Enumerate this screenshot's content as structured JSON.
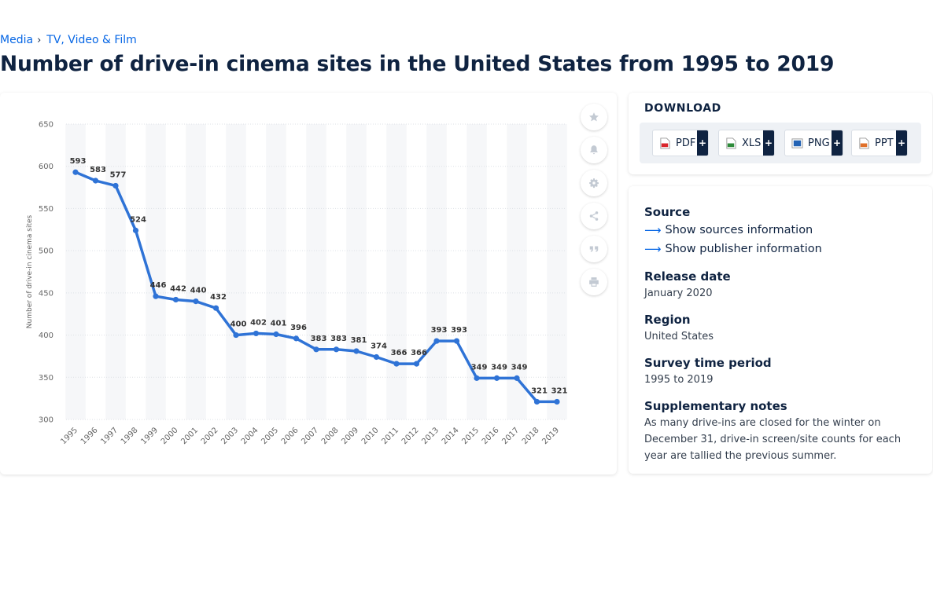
{
  "breadcrumb": {
    "items": [
      "Media",
      "TV, Video & Film"
    ]
  },
  "title": "Number of drive-in cinema sites in the United States from 1995 to 2019",
  "chart_data": {
    "type": "line",
    "title": "",
    "xlabel": "",
    "ylabel": "Number of drive-in cinema sites",
    "categories": [
      "1995",
      "1996",
      "1997",
      "1998",
      "1999",
      "2000",
      "2001",
      "2002",
      "2003",
      "2004",
      "2005",
      "2006",
      "2007",
      "2008",
      "2009",
      "2010",
      "2011",
      "2012",
      "2013",
      "2014",
      "2015",
      "2016",
      "2017",
      "2018",
      "2019"
    ],
    "series": [
      {
        "values": [
          593,
          583,
          577,
          524,
          446,
          442,
          440,
          432,
          400,
          402,
          401,
          396,
          383,
          383,
          381,
          374,
          366,
          366,
          393,
          393,
          349,
          349,
          349,
          321,
          321
        ]
      }
    ],
    "y_ticks": [
      650,
      600,
      550,
      500,
      450,
      400,
      350,
      300
    ],
    "ylim": [
      300,
      650
    ],
    "grid": true,
    "data_labels": true,
    "line_color": "#2f73d6"
  },
  "toolbar": {
    "icons": [
      "star-icon",
      "bell-icon",
      "gear-icon",
      "share-icon",
      "quote-icon",
      "print-icon"
    ]
  },
  "download": {
    "title": "DOWNLOAD",
    "buttons": [
      {
        "label": "PDF",
        "plus": "+",
        "color": "#d9262c"
      },
      {
        "label": "XLS",
        "plus": "+",
        "color": "#2e8b3a"
      },
      {
        "label": "PNG",
        "plus": "+",
        "color": "#2463b4"
      },
      {
        "label": "PPT",
        "plus": "+",
        "color": "#e0702a"
      }
    ]
  },
  "info": {
    "source_label": "Source",
    "show_sources": "Show sources information",
    "show_publisher": "Show publisher information",
    "release_label": "Release date",
    "release_value": "January 2020",
    "region_label": "Region",
    "region_value": "United States",
    "survey_label": "Survey time period",
    "survey_value": "1995 to 2019",
    "notes_label": "Supplementary notes",
    "notes_value": "As many drive-ins are closed for the winter on December 31, drive-in screen/site counts for each year are tallied the previous summer."
  }
}
